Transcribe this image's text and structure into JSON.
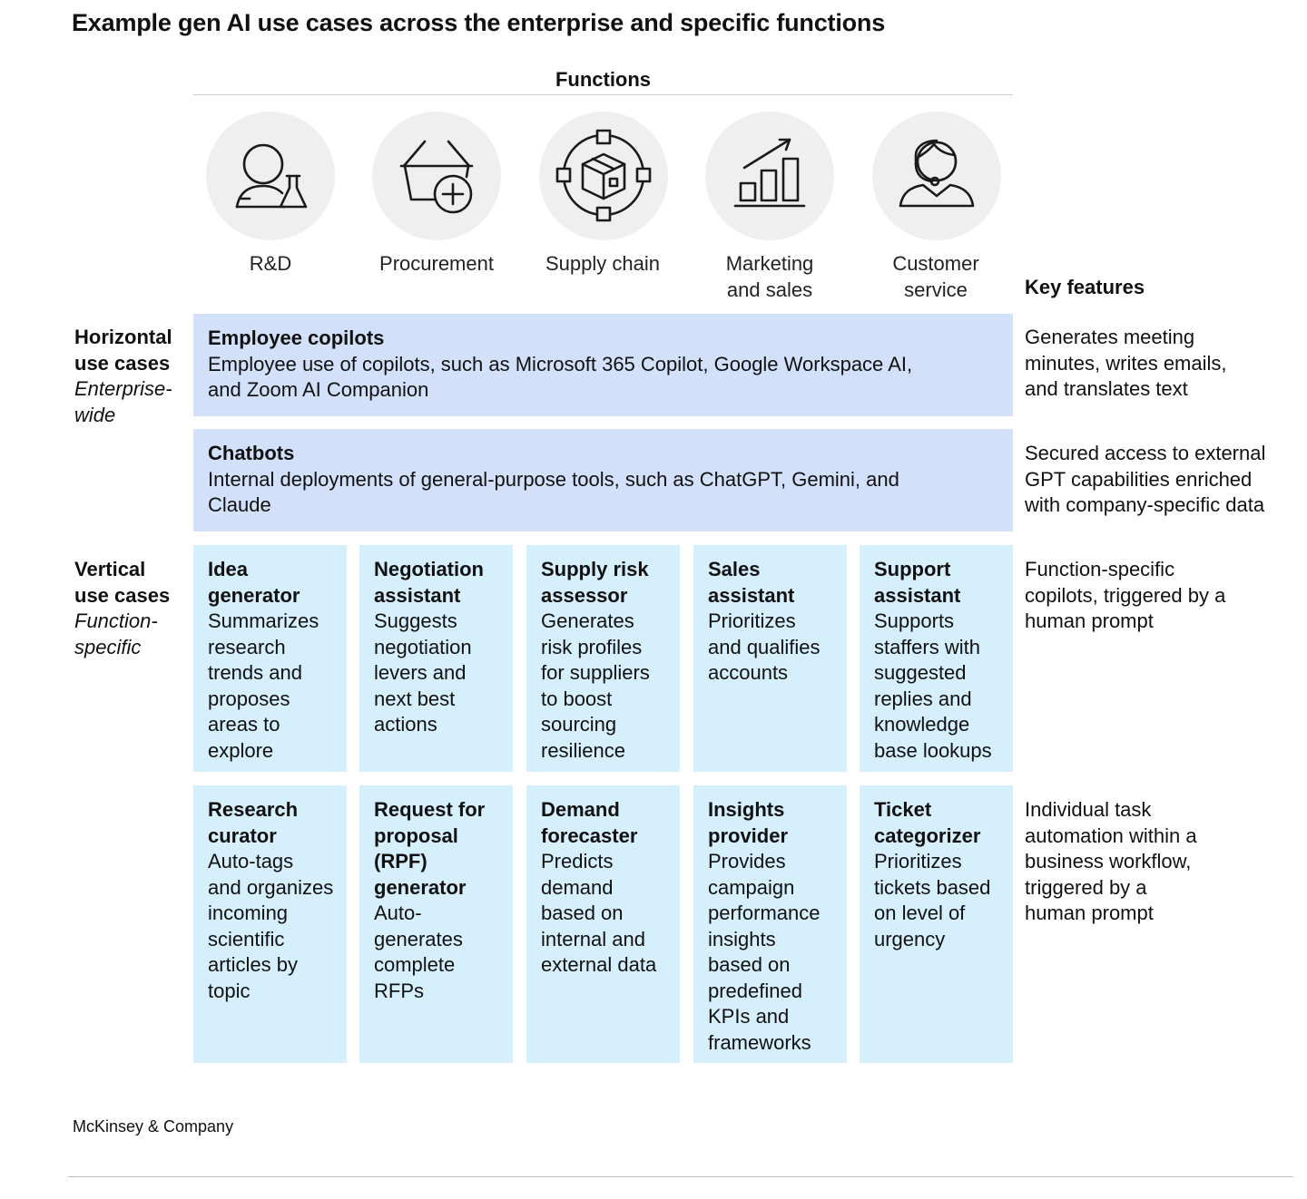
{
  "title": "Example gen AI use cases across the enterprise and specific functions",
  "functions_heading": "Functions",
  "functions": [
    {
      "label": "R&D",
      "icon": "scientist-icon"
    },
    {
      "label": "Procurement",
      "icon": "basket-plus-icon"
    },
    {
      "label": "Supply chain",
      "icon": "package-network-icon"
    },
    {
      "label": "Marketing\nand sales",
      "icon": "growth-chart-icon"
    },
    {
      "label": "Customer\nservice",
      "icon": "headset-agent-icon"
    }
  ],
  "key_features_heading": "Key features",
  "horizontal": {
    "label_bold": "Horizontal\nuse cases",
    "label_italic": "Enterprise-\nwide",
    "rows": [
      {
        "title": "Employee copilots",
        "desc": "Employee use of copilots, such as Microsoft 365 Copilot, Google Workspace AI,\nand Zoom AI Companion",
        "key": "Generates meeting\nminutes, writes emails,\nand translates text"
      },
      {
        "title": "Chatbots",
        "desc": "Internal deployments of general-purpose tools, such as ChatGPT, Gemini, and\nClaude",
        "key": "Secured access to external\nGPT capabilities enriched\nwith company-specific data"
      }
    ]
  },
  "vertical": {
    "label_bold": "Vertical\nuse cases",
    "label_italic": "Function-\nspecific",
    "rows": [
      {
        "key": "Function-specific\ncopilots, triggered by a\nhuman prompt",
        "cells": [
          {
            "title": "Idea\ngenerator",
            "desc": "Summarizes\nresearch\ntrends and\nproposes\nareas to\nexplore"
          },
          {
            "title": "Negotiation\nassistant",
            "desc": "Suggests\nnegotiation\nlevers and\nnext best\nactions"
          },
          {
            "title": "Supply risk\nassessor",
            "desc": "Generates\nrisk profiles\nfor suppliers\nto boost\nsourcing\nresilience"
          },
          {
            "title": "Sales\nassistant",
            "desc": "Prioritizes\nand qualifies\naccounts"
          },
          {
            "title": "Support\nassistant",
            "desc": "Supports\nstaffers with\nsuggested\nreplies and\nknowledge\nbase lookups"
          }
        ]
      },
      {
        "key": "Individual task\nautomation within a\nbusiness workflow,\ntriggered by a\nhuman prompt",
        "cells": [
          {
            "title": "Research\ncurator",
            "desc": "Auto-tags\nand organizes\nincoming\nscientific\narticles by\ntopic"
          },
          {
            "title": "Request for\nproposal\n(RPF)\ngenerator",
            "desc": "Auto-\ngenerates\ncomplete\nRFPs"
          },
          {
            "title": "Demand\nforecaster",
            "desc": "Predicts\ndemand\nbased on\ninternal and\nexternal data"
          },
          {
            "title": "Insights\nprovider",
            "desc": "Provides\ncampaign\nperformance\ninsights\nbased on\npredefined\nKPIs and\nframeworks"
          },
          {
            "title": "Ticket\ncategorizer",
            "desc": "Prioritizes\ntickets based\non level of\nurgency"
          }
        ]
      }
    ]
  },
  "footer": "McKinsey & Company",
  "colors": {
    "horizontal_fill": "#d2e0fa",
    "vertical_fill": "#d6effc",
    "icon_circle": "#efefef"
  }
}
